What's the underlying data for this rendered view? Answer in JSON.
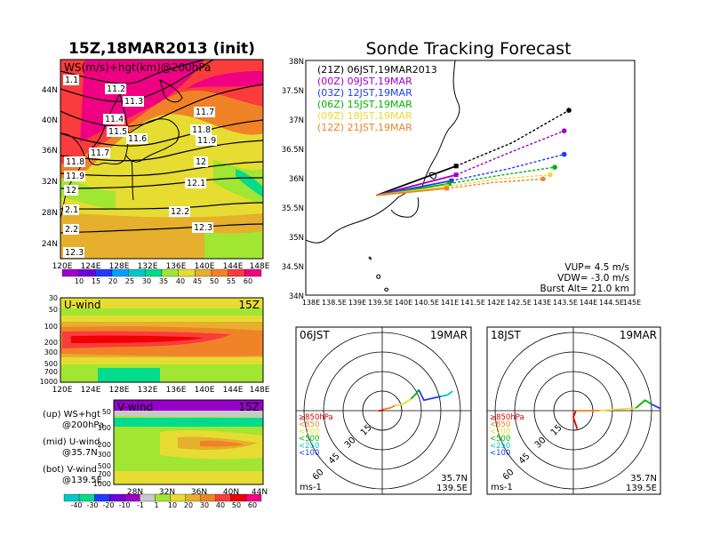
{
  "left_title": "15Z,18MAR2013 (init)",
  "right_title": "Sonde Tracking Forecast",
  "ws_panel": {
    "label": "WS(m/s)+hgt(km)@200hPa",
    "x_ticks": [
      "120E",
      "124E",
      "128E",
      "132E",
      "136E",
      "140E",
      "144E",
      "148E"
    ],
    "y_ticks": [
      "44N",
      "40N",
      "36N",
      "32N",
      "28N",
      "24N"
    ],
    "contour_labels": [
      "1.1",
      "11.2",
      "11.3",
      "11.4",
      "11.5",
      "11.6",
      "11.7",
      "11.8",
      "11.9",
      "11.7",
      "11.8",
      "11.9",
      "12",
      "12",
      "12.1",
      "12.2",
      "12.3",
      "2.1",
      "2.2",
      "12.3"
    ],
    "colorbar_ticks": [
      "10",
      "15",
      "20",
      "25",
      "30",
      "35",
      "40",
      "45",
      "50",
      "55",
      "60"
    ],
    "colorbar_colors": [
      "#a000c8",
      "#6e00dc",
      "#1e3cff",
      "#00a0ff",
      "#00c8c8",
      "#00dc8c",
      "#a0e632",
      "#e6dc32",
      "#e6af2d",
      "#f08228",
      "#fa3c3c",
      "#f00082"
    ]
  },
  "u_panel": {
    "label": "U-wind",
    "time": "15Z",
    "y_ticks": [
      "30",
      "50",
      "100",
      "200",
      "300",
      "500",
      "700",
      "1000"
    ],
    "x_ticks": [
      "120E",
      "124E",
      "128E",
      "132E",
      "136E",
      "140E",
      "144E",
      "148E"
    ]
  },
  "v_panel": {
    "label": "V-wind",
    "time": "15Z",
    "y_ticks": [
      "50",
      "100",
      "200",
      "300",
      "500",
      "700",
      "1000"
    ],
    "x_ticks": [
      "28N",
      "32N",
      "36N",
      "40N",
      "44N"
    ],
    "colorbar_ticks": [
      "-40",
      "-30",
      "-20",
      "-10",
      "-1",
      "1",
      "10",
      "20",
      "30",
      "40",
      "50",
      "60"
    ]
  },
  "legend_notes": [
    {
      "label": "(up) WS+hgt",
      "sub": "@200hPa"
    },
    {
      "label": "(mid) U-wind",
      "sub": "@35.7N"
    },
    {
      "label": "(bot) V-wind",
      "sub": "@139.5E"
    }
  ],
  "chart_data": [
    {
      "type": "line",
      "title": "Sonde Tracking Forecast",
      "xlabel": "",
      "ylabel": "",
      "xlim": [
        138,
        145
      ],
      "ylim": [
        34,
        38
      ],
      "x_ticks": [
        "138E",
        "138.5E",
        "139E",
        "139.5E",
        "140E",
        "140.5E",
        "141E",
        "141.5E",
        "142E",
        "142.5E",
        "143E",
        "143.5E",
        "144E",
        "144.5E",
        "145E"
      ],
      "y_ticks": [
        "34N",
        "34.5N",
        "35N",
        "35.5N",
        "36N",
        "36.5N",
        "37N",
        "37.5N",
        "38N"
      ],
      "launch": [
        139.5,
        35.7
      ],
      "series": [
        {
          "name": "(21Z)  06JST,19MAR2013",
          "color": "#000000",
          "points": [
            [
              139.5,
              35.7
            ],
            [
              141.2,
              36.2
            ],
            [
              142.4,
              36.6
            ],
            [
              143.6,
              37.15
            ]
          ]
        },
        {
          "name": "(00Z)  09JST,19MAR",
          "color": "#a000c8",
          "points": [
            [
              139.5,
              35.7
            ],
            [
              141.2,
              36.05
            ],
            [
              142.4,
              36.45
            ],
            [
              143.5,
              36.8
            ]
          ]
        },
        {
          "name": "(03Z)  12JST,19MAR",
          "color": "#1e3cff",
          "points": [
            [
              139.5,
              35.7
            ],
            [
              141.1,
              35.95
            ],
            [
              142.3,
              36.15
            ],
            [
              143.5,
              36.4
            ]
          ]
        },
        {
          "name": "(06Z)  15JST,19MAR",
          "color": "#00b400",
          "points": [
            [
              139.5,
              35.7
            ],
            [
              141.05,
              35.9
            ],
            [
              142.2,
              36.05
            ],
            [
              143.3,
              36.18
            ]
          ]
        },
        {
          "name": "(09Z)  18JST,19MAR",
          "color": "#e6dc32",
          "points": [
            [
              139.5,
              35.7
            ],
            [
              141.0,
              35.85
            ],
            [
              142.1,
              35.98
            ],
            [
              143.2,
              36.05
            ]
          ]
        },
        {
          "name": "(12Z)  21JST,19MAR",
          "color": "#f08228",
          "points": [
            [
              139.5,
              35.7
            ],
            [
              141.0,
              35.82
            ],
            [
              142.0,
              35.92
            ],
            [
              143.05,
              35.98
            ]
          ]
        }
      ],
      "info": [
        "VUP= 4.5 m/s",
        "VDW= -3.0 m/s",
        "Burst Alt= 21.0 km"
      ]
    },
    {
      "type": "scatter",
      "title": "06JST",
      "date": "19MAR",
      "location": [
        "35.7N",
        "139.5E"
      ],
      "unit": "ms-1",
      "ring_labels": [
        "15",
        "30",
        "45",
        "60"
      ],
      "level_legend": [
        {
          "label": "≥850hPa",
          "color": "#e60000"
        },
        {
          "label": "<850",
          "color": "#f08228"
        },
        {
          "label": "<700",
          "color": "#e6dc32"
        },
        {
          "label": "<500",
          "color": "#00b400"
        },
        {
          "label": "<250",
          "color": "#00c8c8"
        },
        {
          "label": "<100",
          "color": "#1e3cff"
        }
      ],
      "hodograph": [
        {
          "color": "#e60000",
          "points": [
            [
              -3,
              0
            ],
            [
              0,
              0
            ],
            [
              1,
              1
            ]
          ]
        },
        {
          "color": "#f08228",
          "points": [
            [
              1,
              1
            ],
            [
              6,
              2
            ],
            [
              10,
              4
            ]
          ]
        },
        {
          "color": "#e6dc32",
          "points": [
            [
              10,
              4
            ],
            [
              16,
              5
            ],
            [
              22,
              9
            ]
          ]
        },
        {
          "color": "#00b400",
          "points": [
            [
              22,
              9
            ],
            [
              26,
              13
            ],
            [
              28,
              16
            ]
          ]
        },
        {
          "color": "#1e3cff",
          "points": [
            [
              28,
              16
            ],
            [
              32,
              8
            ],
            [
              45,
              11
            ]
          ]
        },
        {
          "color": "#00c8c8",
          "points": [
            [
              45,
              11
            ],
            [
              50,
              12
            ],
            [
              54,
              15
            ]
          ]
        }
      ]
    },
    {
      "type": "scatter",
      "title": "18JST",
      "date": "19MAR",
      "location": [
        "35.7N",
        "139.5E"
      ],
      "unit": "ms-1",
      "ring_labels": [
        "15",
        "30",
        "45",
        "60"
      ],
      "level_legend": [
        {
          "label": "≥850hPa",
          "color": "#e60000"
        },
        {
          "label": "<850",
          "color": "#f08228"
        },
        {
          "label": "<700",
          "color": "#e6dc32"
        },
        {
          "label": "<500",
          "color": "#00b400"
        },
        {
          "label": "<250",
          "color": "#00c8c8"
        },
        {
          "label": "<100",
          "color": "#1e3cff"
        }
      ],
      "hodograph": [
        {
          "color": "#e60000",
          "points": [
            [
              2,
              0
            ],
            [
              0,
              -5
            ],
            [
              3,
              -14
            ]
          ]
        },
        {
          "color": "#f08228",
          "points": [
            [
              2,
              0
            ],
            [
              10,
              0
            ],
            [
              20,
              0
            ]
          ]
        },
        {
          "color": "#e6dc32",
          "points": [
            [
              20,
              0
            ],
            [
              35,
              1
            ],
            [
              48,
              2
            ]
          ]
        },
        {
          "color": "#00b400",
          "points": [
            [
              48,
              2
            ],
            [
              55,
              8
            ],
            [
              60,
              5
            ]
          ]
        },
        {
          "color": "#1e3cff",
          "points": [
            [
              60,
              5
            ],
            [
              66,
              2
            ],
            [
              72,
              5
            ],
            [
              68,
              -3
            ],
            [
              76,
              0
            ]
          ]
        },
        {
          "color": "#00c8c8",
          "points": [
            [
              76,
              0
            ],
            [
              80,
              8
            ],
            [
              78,
              -4
            ]
          ]
        }
      ]
    }
  ]
}
